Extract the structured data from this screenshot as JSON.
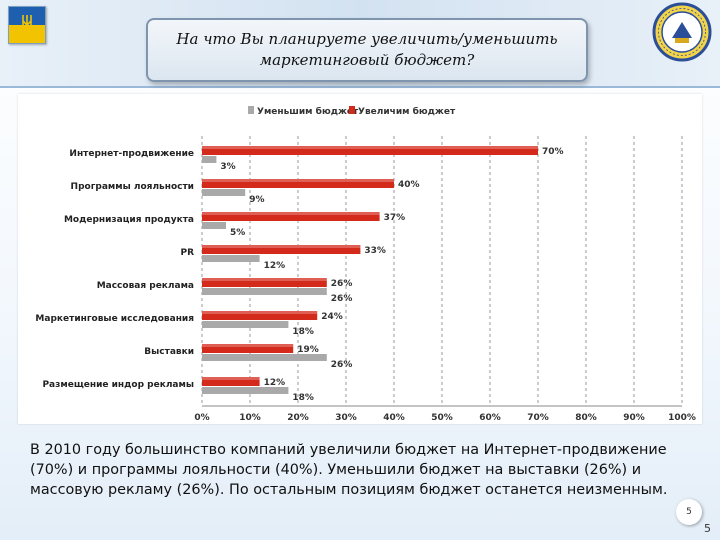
{
  "slide": {
    "title_line1": "На что Вы планируете увеличить/уменьшить",
    "title_line2": "маркетинговый бюджет?",
    "caption": "В 2010 году большинство компаний увеличили бюджет на Интернет-продвижение (70%) и программы лояльности (40%). Уменьшили бюджет на выставки (26%) и массовую рекламу (26%). По остальным позициям бюджет останется неизменным.",
    "page_number": "5",
    "flag_colors": [
      "#1f5fb0",
      "#f2c300"
    ],
    "emblem_icon": "university-emblem-icon"
  },
  "chart_data": {
    "type": "bar",
    "orientation": "horizontal",
    "categories": [
      "Интернет-продвижение",
      "Программы лояльности",
      "Модернизация продукта",
      "PR",
      "Массовая реклама",
      "Маркетинговые исследования",
      "Выставки",
      "Размещение индор рекламы"
    ],
    "series": [
      {
        "name": "Увеличим бюджет",
        "color": "#d42a1c",
        "values": [
          70,
          40,
          37,
          33,
          26,
          24,
          19,
          12
        ]
      },
      {
        "name": "Уменьшим бюджет",
        "color": "#a9a9a9",
        "values": [
          3,
          9,
          5,
          12,
          26,
          18,
          26,
          18
        ]
      }
    ],
    "value_labels": [
      [
        "70%",
        "40%",
        "37%",
        "33%",
        "26%",
        "24%",
        "19%",
        "12%"
      ],
      [
        "3%",
        "9%",
        "5%",
        "12%",
        "26%",
        "18%",
        "26%",
        "18%"
      ]
    ],
    "x_ticks": [
      "0%",
      "10%",
      "20%",
      "30%",
      "40%",
      "50%",
      "60%",
      "70%",
      "80%",
      "90%",
      "100%"
    ],
    "xlim": [
      0,
      100
    ],
    "grid": true,
    "legend_position": "top"
  }
}
